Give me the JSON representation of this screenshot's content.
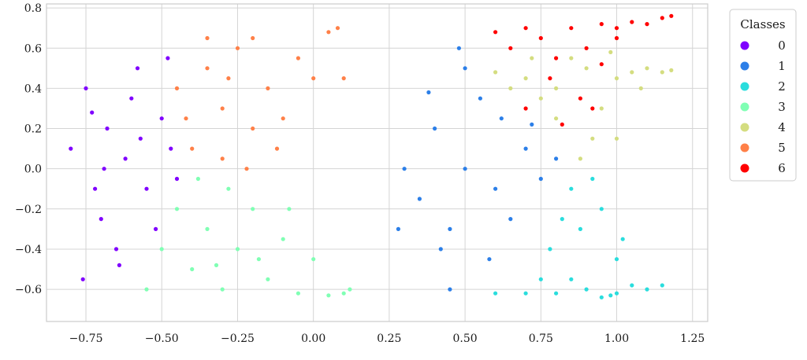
{
  "chart_data": {
    "type": "scatter",
    "title": "",
    "xlabel": "",
    "ylabel": "",
    "xlim": [
      -0.88,
      1.3
    ],
    "ylim": [
      -0.76,
      0.82
    ],
    "x_ticks": [
      -0.75,
      -0.5,
      -0.25,
      0.0,
      0.25,
      0.5,
      0.75,
      1.0,
      1.25
    ],
    "x_tick_labels": [
      "−0.75",
      "−0.50",
      "−0.25",
      "0.00",
      "0.25",
      "0.50",
      "0.75",
      "1.00",
      "1.25"
    ],
    "y_ticks": [
      -0.6,
      -0.4,
      -0.2,
      0.0,
      0.2,
      0.4,
      0.6,
      0.8
    ],
    "y_tick_labels": [
      "−0.6",
      "−0.4",
      "−0.2",
      "0.0",
      "0.2",
      "0.4",
      "0.6",
      "0.8"
    ],
    "grid": true,
    "legend": {
      "title": "Classes",
      "placement": "outside-top-right"
    },
    "series": [
      {
        "name": "0",
        "color": "#8000ff",
        "points": [
          [
            -0.62,
            0.05
          ],
          [
            -0.55,
            -0.1
          ],
          [
            -0.68,
            0.2
          ],
          [
            -0.7,
            -0.25
          ],
          [
            -0.5,
            0.25
          ],
          [
            -0.75,
            0.4
          ],
          [
            -0.58,
            0.5
          ],
          [
            -0.45,
            -0.05
          ],
          [
            -0.8,
            0.1
          ],
          [
            -0.65,
            -0.4
          ],
          [
            -0.6,
            0.35
          ],
          [
            -0.72,
            -0.1
          ],
          [
            -0.52,
            -0.3
          ],
          [
            -0.76,
            -0.55
          ],
          [
            -0.48,
            0.55
          ],
          [
            -0.64,
            -0.48
          ],
          [
            -0.57,
            0.15
          ],
          [
            -0.69,
            0.0
          ],
          [
            -0.73,
            0.28
          ],
          [
            -0.47,
            0.1
          ]
        ]
      },
      {
        "name": "1",
        "color": "#2c7fe8",
        "points": [
          [
            0.5,
            0.0
          ],
          [
            0.6,
            -0.1
          ],
          [
            0.4,
            0.2
          ],
          [
            0.45,
            -0.3
          ],
          [
            0.7,
            0.1
          ],
          [
            0.35,
            -0.15
          ],
          [
            0.55,
            0.35
          ],
          [
            0.65,
            -0.25
          ],
          [
            0.3,
            0.0
          ],
          [
            0.5,
            0.5
          ],
          [
            0.75,
            -0.05
          ],
          [
            0.42,
            -0.4
          ],
          [
            0.62,
            0.25
          ],
          [
            0.38,
            0.38
          ],
          [
            0.58,
            -0.45
          ],
          [
            0.28,
            -0.3
          ],
          [
            0.72,
            0.22
          ],
          [
            0.48,
            0.6
          ],
          [
            0.45,
            -0.6
          ],
          [
            0.8,
            0.05
          ]
        ]
      },
      {
        "name": "2",
        "color": "#2adddd",
        "points": [
          [
            0.9,
            -0.6
          ],
          [
            1.0,
            -0.62
          ],
          [
            0.8,
            -0.62
          ],
          [
            1.1,
            -0.6
          ],
          [
            0.95,
            -0.64
          ],
          [
            1.05,
            -0.58
          ],
          [
            0.7,
            -0.62
          ],
          [
            1.15,
            -0.58
          ],
          [
            0.85,
            -0.55
          ],
          [
            0.6,
            -0.62
          ],
          [
            0.88,
            -0.3
          ],
          [
            0.95,
            -0.2
          ],
          [
            0.78,
            -0.4
          ],
          [
            1.0,
            -0.45
          ],
          [
            0.85,
            -0.1
          ],
          [
            0.92,
            -0.05
          ],
          [
            0.75,
            -0.55
          ],
          [
            1.02,
            -0.35
          ],
          [
            0.82,
            -0.25
          ],
          [
            0.98,
            -0.63
          ]
        ]
      },
      {
        "name": "3",
        "color": "#80ffb4",
        "points": [
          [
            -0.35,
            -0.3
          ],
          [
            -0.25,
            -0.4
          ],
          [
            -0.45,
            -0.2
          ],
          [
            -0.3,
            -0.6
          ],
          [
            -0.2,
            -0.2
          ],
          [
            -0.4,
            -0.5
          ],
          [
            -0.15,
            -0.55
          ],
          [
            -0.1,
            -0.35
          ],
          [
            -0.5,
            -0.4
          ],
          [
            -0.05,
            -0.62
          ],
          [
            0.05,
            -0.63
          ],
          [
            0.1,
            -0.62
          ],
          [
            -0.28,
            -0.1
          ],
          [
            -0.38,
            -0.05
          ],
          [
            -0.18,
            -0.45
          ],
          [
            -0.55,
            -0.6
          ],
          [
            0.0,
            -0.45
          ],
          [
            -0.08,
            -0.2
          ],
          [
            -0.32,
            -0.48
          ],
          [
            0.12,
            -0.6
          ]
        ]
      },
      {
        "name": "4",
        "color": "#d4dd80",
        "points": [
          [
            0.7,
            0.45
          ],
          [
            0.8,
            0.4
          ],
          [
            0.9,
            0.5
          ],
          [
            1.0,
            0.45
          ],
          [
            1.1,
            0.5
          ],
          [
            0.85,
            0.55
          ],
          [
            0.95,
            0.3
          ],
          [
            0.75,
            0.35
          ],
          [
            1.05,
            0.48
          ],
          [
            1.15,
            0.48
          ],
          [
            0.6,
            0.48
          ],
          [
            0.92,
            0.15
          ],
          [
            0.8,
            0.25
          ],
          [
            1.0,
            0.15
          ],
          [
            0.88,
            0.05
          ],
          [
            1.08,
            0.4
          ],
          [
            0.72,
            0.55
          ],
          [
            0.98,
            0.58
          ],
          [
            0.65,
            0.4
          ],
          [
            1.18,
            0.49
          ]
        ]
      },
      {
        "name": "5",
        "color": "#ff8048",
        "points": [
          [
            -0.3,
            0.3
          ],
          [
            -0.2,
            0.2
          ],
          [
            -0.35,
            0.5
          ],
          [
            -0.25,
            0.6
          ],
          [
            -0.4,
            0.1
          ],
          [
            -0.15,
            0.4
          ],
          [
            -0.45,
            0.4
          ],
          [
            -0.1,
            0.25
          ],
          [
            -0.3,
            0.05
          ],
          [
            -0.2,
            0.65
          ],
          [
            0.05,
            0.68
          ],
          [
            0.08,
            0.7
          ],
          [
            0.0,
            0.45
          ],
          [
            -0.35,
            0.65
          ],
          [
            -0.42,
            0.25
          ],
          [
            -0.05,
            0.55
          ],
          [
            -0.12,
            0.1
          ],
          [
            -0.28,
            0.45
          ],
          [
            0.1,
            0.45
          ],
          [
            -0.22,
            0.0
          ]
        ]
      },
      {
        "name": "6",
        "color": "#ff0000",
        "points": [
          [
            0.85,
            0.7
          ],
          [
            0.95,
            0.72
          ],
          [
            1.0,
            0.7
          ],
          [
            1.05,
            0.73
          ],
          [
            1.1,
            0.72
          ],
          [
            0.75,
            0.65
          ],
          [
            0.8,
            0.55
          ],
          [
            0.9,
            0.6
          ],
          [
            0.7,
            0.7
          ],
          [
            1.15,
            0.75
          ],
          [
            0.65,
            0.6
          ],
          [
            0.78,
            0.45
          ],
          [
            0.88,
            0.35
          ],
          [
            0.82,
            0.22
          ],
          [
            0.92,
            0.3
          ],
          [
            0.7,
            0.3
          ],
          [
            1.0,
            0.65
          ],
          [
            0.6,
            0.68
          ],
          [
            0.95,
            0.52
          ],
          [
            1.18,
            0.76
          ]
        ]
      }
    ]
  }
}
